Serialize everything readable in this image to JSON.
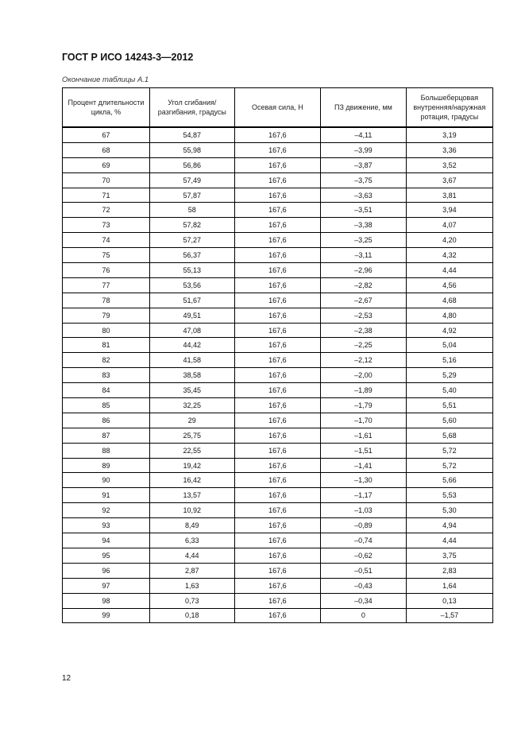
{
  "header": {
    "title": "ГОСТ Р ИСО 14243-3—2012"
  },
  "table": {
    "caption": "Окончание таблицы А.1",
    "columns": [
      "Процент длительности цикла, %",
      "Угол сгибания/разгибания, градусы",
      "Осевая сила, Н",
      "ПЗ движение, мм",
      "Большеберцовая внутренняя/наружная ротация, градусы"
    ],
    "rows": [
      [
        "67",
        "54,87",
        "167,6",
        "–4,11",
        "3,19"
      ],
      [
        "68",
        "55,98",
        "167,6",
        "–3,99",
        "3,36"
      ],
      [
        "69",
        "56,86",
        "167,6",
        "–3,87",
        "3,52"
      ],
      [
        "70",
        "57,49",
        "167,6",
        "–3,75",
        "3,67"
      ],
      [
        "71",
        "57,87",
        "167,6",
        "–3,63",
        "3,81"
      ],
      [
        "72",
        "58",
        "167,6",
        "–3,51",
        "3,94"
      ],
      [
        "73",
        "57,82",
        "167,6",
        "–3,38",
        "4,07"
      ],
      [
        "74",
        "57,27",
        "167,6",
        "–3,25",
        "4,20"
      ],
      [
        "75",
        "56,37",
        "167,6",
        "–3,11",
        "4,32"
      ],
      [
        "76",
        "55,13",
        "167,6",
        "–2,96",
        "4,44"
      ],
      [
        "77",
        "53,56",
        "167,6",
        "–2,82",
        "4,56"
      ],
      [
        "78",
        "51,67",
        "167,6",
        "–2,67",
        "4,68"
      ],
      [
        "79",
        "49,51",
        "167,6",
        "–2,53",
        "4,80"
      ],
      [
        "80",
        "47,08",
        "167,6",
        "–2,38",
        "4,92"
      ],
      [
        "81",
        "44,42",
        "167,6",
        "–2,25",
        "5,04"
      ],
      [
        "82",
        "41,58",
        "167,6",
        "–2,12",
        "5,16"
      ],
      [
        "83",
        "38,58",
        "167,6",
        "–2,00",
        "5,29"
      ],
      [
        "84",
        "35,45",
        "167,6",
        "–1,89",
        "5,40"
      ],
      [
        "85",
        "32,25",
        "167,6",
        "–1,79",
        "5,51"
      ],
      [
        "86",
        "29",
        "167,6",
        "–1,70",
        "5,60"
      ],
      [
        "87",
        "25,75",
        "167,6",
        "–1,61",
        "5,68"
      ],
      [
        "88",
        "22,55",
        "167,6",
        "–1,51",
        "5,72"
      ],
      [
        "89",
        "19,42",
        "167,6",
        "–1,41",
        "5,72"
      ],
      [
        "90",
        "16,42",
        "167,6",
        "–1,30",
        "5,66"
      ],
      [
        "91",
        "13,57",
        "167,6",
        "–1,17",
        "5,53"
      ],
      [
        "92",
        "10,92",
        "167,6",
        "–1,03",
        "5,30"
      ],
      [
        "93",
        "8,49",
        "167,6",
        "–0,89",
        "4,94"
      ],
      [
        "94",
        "6,33",
        "167,6",
        "–0,74",
        "4,44"
      ],
      [
        "95",
        "4,44",
        "167,6",
        "–0,62",
        "3,75"
      ],
      [
        "96",
        "2,87",
        "167,6",
        "–0,51",
        "2,83"
      ],
      [
        "97",
        "1,63",
        "167,6",
        "–0,43",
        "1,64"
      ],
      [
        "98",
        "0,73",
        "167,6",
        "–0,34",
        "0,13"
      ],
      [
        "99",
        "0,18",
        "167,6",
        "0",
        "–1,57"
      ]
    ]
  },
  "footer": {
    "page_number": "12"
  }
}
